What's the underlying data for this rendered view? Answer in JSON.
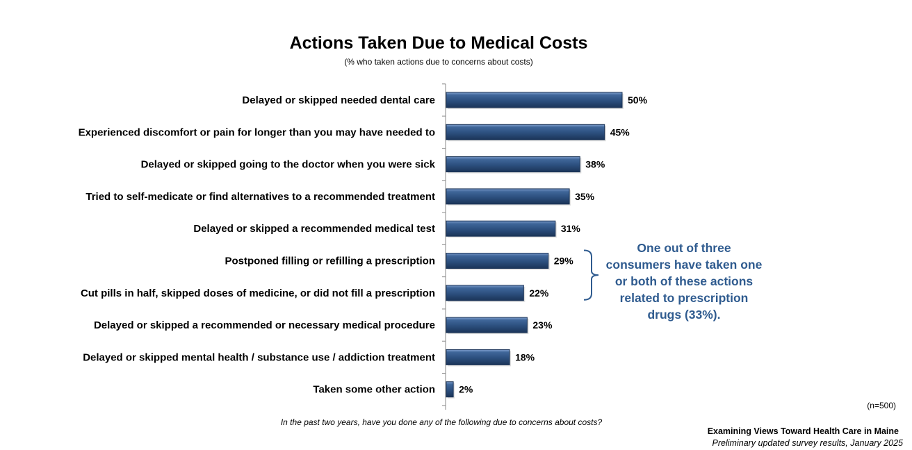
{
  "chart_data": {
    "type": "bar",
    "orientation": "horizontal",
    "title": "Actions Taken Due to Medical Costs",
    "subtitle": "(% who taken actions due to concerns about costs)",
    "categories": [
      "Delayed or skipped needed dental care",
      "Experienced discomfort or pain for longer than you may have needed to",
      "Delayed or skipped going to the doctor when you were sick",
      "Tried to self-medicate or find alternatives to a recommended treatment",
      "Delayed or skipped a recommended medical test",
      "Postponed filling or refilling a prescription",
      "Cut pills in half, skipped doses of medicine, or did not fill a prescription",
      "Delayed or skipped a recommended or necessary medical procedure",
      "Delayed or skipped mental health / substance use / addiction treatment",
      "Taken some other action"
    ],
    "values": [
      50,
      45,
      38,
      35,
      31,
      29,
      22,
      23,
      18,
      2
    ],
    "value_labels": [
      "50%",
      "45%",
      "38%",
      "35%",
      "31%",
      "29%",
      "22%",
      "23%",
      "18%",
      "2%"
    ],
    "xlim": [
      0,
      100
    ],
    "grid": false,
    "annotation": {
      "text": "One out of three consumers have taken one or both of these actions related to prescription drugs (33%).",
      "applies_to": [
        5,
        6
      ]
    }
  },
  "callout": {
    "lines": [
      "One out of three",
      "consumers have taken one",
      "or both of these actions",
      "related to prescription",
      "drugs (33%)."
    ]
  },
  "footer": {
    "sample_size": "(n=500)",
    "question": "In the past two years, have you done any of the following due to concerns about costs?",
    "source_title": "Examining Views Toward Health Care in Maine",
    "source_subtitle": "Preliminary updated survey results, January 2025"
  },
  "colors": {
    "bar": "#2c4f7e",
    "bar_highlight": "#5f86b8",
    "bar_dark": "#1a3356",
    "callout": "#2f5b8f",
    "axis": "#888888"
  }
}
